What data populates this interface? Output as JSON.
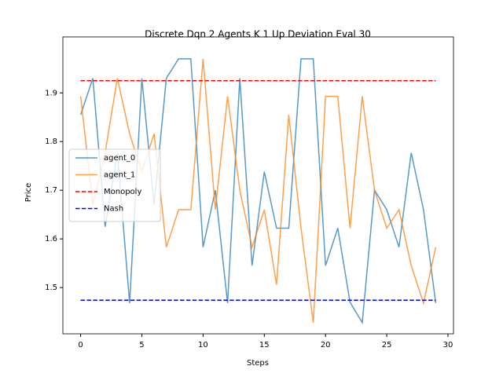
{
  "chart_data": {
    "type": "line",
    "title": "Discrete Dqn 2 Agents K 1 Up Deviation Eval 30",
    "xlabel": "Steps",
    "ylabel": "Price",
    "x": [
      0,
      1,
      2,
      3,
      4,
      5,
      6,
      7,
      8,
      9,
      10,
      11,
      12,
      13,
      14,
      15,
      16,
      17,
      18,
      19,
      20,
      21,
      22,
      23,
      24,
      25,
      26,
      27,
      28,
      29
    ],
    "series": [
      {
        "name": "agent_0",
        "color": "#1f77b4",
        "alpha": 0.75,
        "linestyle": "-",
        "values": [
          1.855,
          1.93,
          1.625,
          1.777,
          1.468,
          1.93,
          1.67,
          1.93,
          1.97,
          1.97,
          1.583,
          1.7,
          1.468,
          1.93,
          1.545,
          1.738,
          1.622,
          1.622,
          1.97,
          1.97,
          1.545,
          1.622,
          1.47,
          1.428,
          1.7,
          1.66,
          1.583,
          1.777,
          1.66,
          1.468
        ]
      },
      {
        "name": "agent_1",
        "color": "#ff7f0e",
        "alpha": 0.75,
        "linestyle": "-",
        "values": [
          1.893,
          1.67,
          1.777,
          1.93,
          1.816,
          1.738,
          1.816,
          1.583,
          1.66,
          1.66,
          1.97,
          1.66,
          1.893,
          1.7,
          1.583,
          1.66,
          1.506,
          1.855,
          1.622,
          1.428,
          1.893,
          1.893,
          1.622,
          1.893,
          1.7,
          1.622,
          1.66,
          1.545,
          1.468,
          1.583
        ]
      },
      {
        "name": "Monopoly",
        "color": "#ff0000",
        "alpha": 1,
        "linestyle": "--",
        "x": [
          0,
          29
        ],
        "values": [
          1.925,
          1.925
        ]
      },
      {
        "name": "Nash",
        "color": "#0000ff",
        "alpha": 1,
        "linestyle": "--",
        "x": [
          0,
          29
        ],
        "values": [
          1.474,
          1.474
        ]
      }
    ],
    "xlim": [
      -1.45,
      30.45
    ],
    "ylim": [
      1.405,
      2.015
    ],
    "xticks": [
      0,
      5,
      10,
      15,
      20,
      25,
      30
    ],
    "yticks": [
      1.5,
      1.6,
      1.7,
      1.8,
      1.9
    ],
    "grid": false,
    "legend": "center left"
  }
}
